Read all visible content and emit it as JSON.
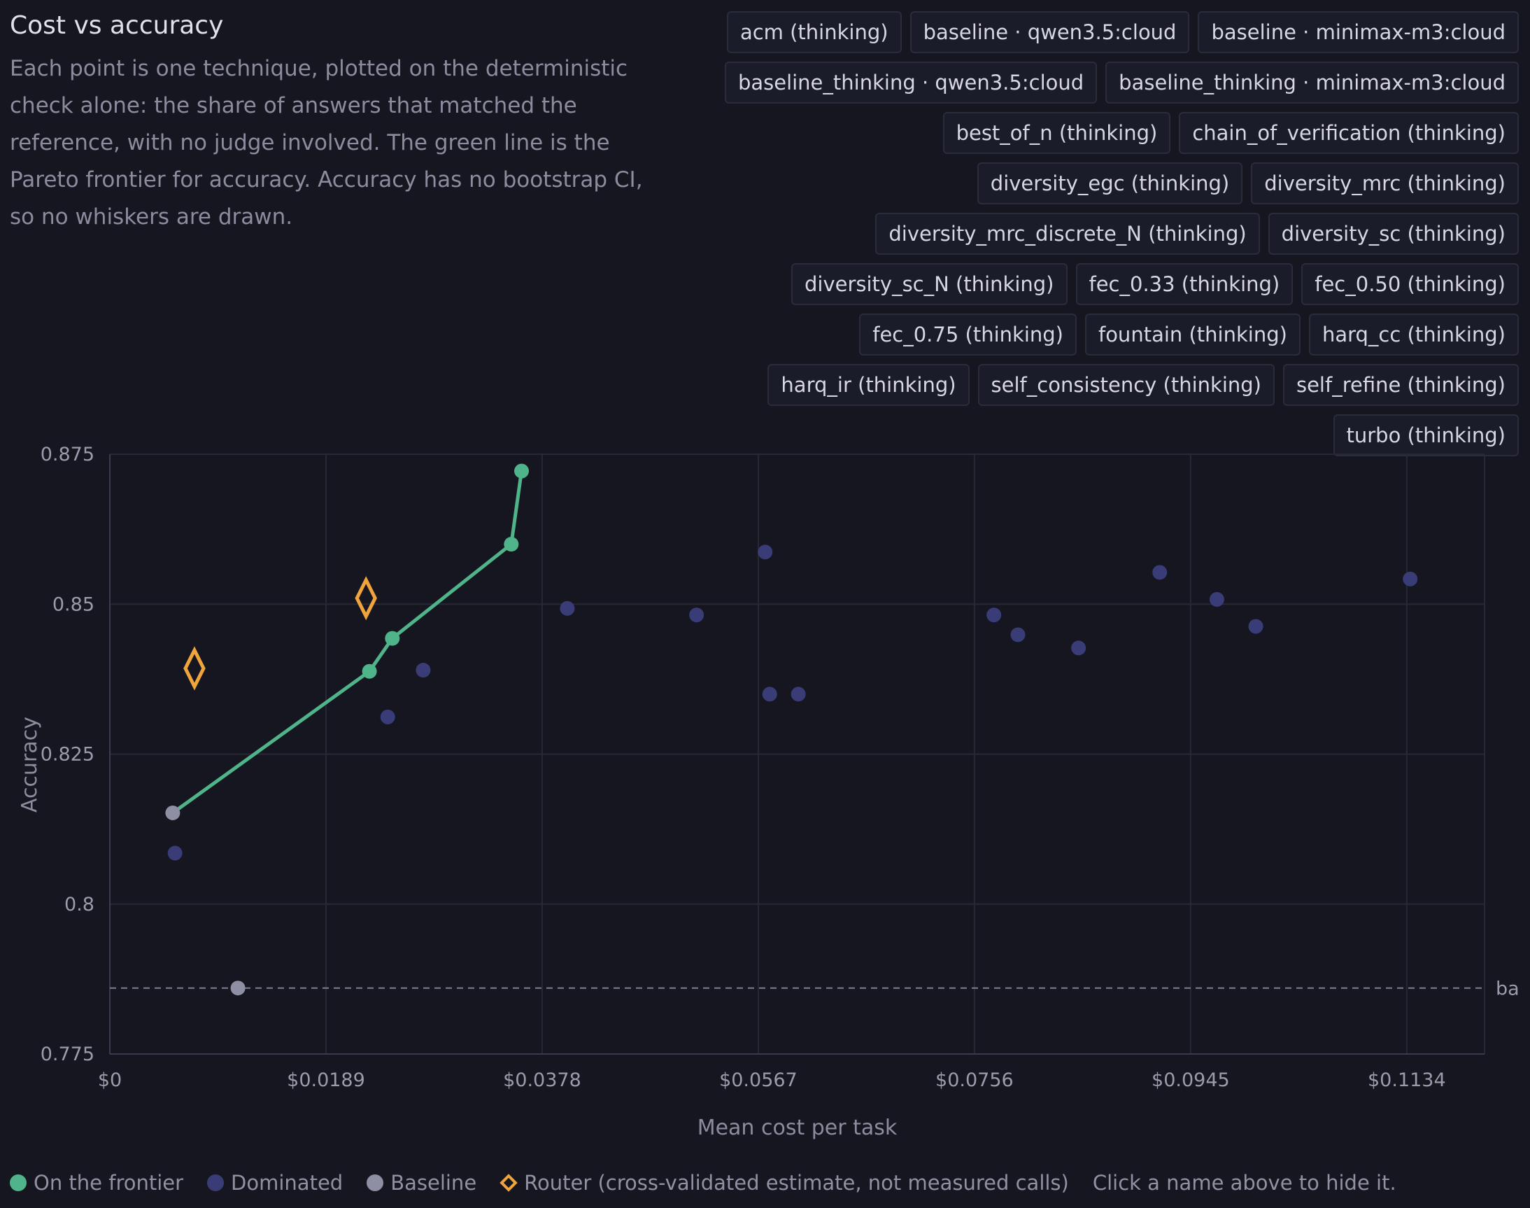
{
  "header": {
    "title": "Cost vs accuracy",
    "description": "Each point is one technique, plotted on the deterministic check alone: the share of answers that matched the reference, with no judge involved. The green line is the Pareto frontier for accuracy. Accuracy has no bootstrap CI, so no whiskers are drawn."
  },
  "filters": [
    "acm (thinking)",
    "baseline · qwen3.5:cloud",
    "baseline · minimax-m3:cloud",
    "baseline_thinking · qwen3.5:cloud",
    "baseline_thinking · minimax-m3:cloud",
    "best_of_n (thinking)",
    "chain_of_verification (thinking)",
    "diversity_egc (thinking)",
    "diversity_mrc (thinking)",
    "diversity_mrc_discrete_N (thinking)",
    "diversity_sc (thinking)",
    "diversity_sc_N (thinking)",
    "fec_0.33 (thinking)",
    "fec_0.50 (thinking)",
    "fec_0.75 (thinking)",
    "fountain (thinking)",
    "harq_cc (thinking)",
    "harq_ir (thinking)",
    "self_consistency (thinking)",
    "self_refine (thinking)",
    "turbo (thinking)"
  ],
  "chart_data": {
    "type": "scatter",
    "xlabel": "Mean cost per task",
    "ylabel": "Accuracy",
    "xlim": [
      0,
      0.1202
    ],
    "ylim": [
      0.775,
      0.875
    ],
    "x_ticks": [
      "$0",
      "$0.0189",
      "$0.0378",
      "$0.0567",
      "$0.0756",
      "$0.0945",
      "$0.1134"
    ],
    "x_tick_values": [
      0,
      0.0189,
      0.0378,
      0.0567,
      0.0756,
      0.0945,
      0.1134
    ],
    "y_ticks": [
      "0.875",
      "0.85",
      "0.825",
      "0.8",
      "0.775"
    ],
    "y_tick_values": [
      0.875,
      0.85,
      0.825,
      0.8,
      0.775
    ],
    "grid": true,
    "reference_line": {
      "y": 0.786,
      "label": "ba"
    },
    "colors": {
      "frontier": "#4fb48a",
      "dominated": "#3a3c78",
      "baseline": "#8e8fa3",
      "router": "#f0a43c",
      "grid": "#272836",
      "axis": "#3a3b4c"
    },
    "frontier_line": [
      {
        "x": 0.0055,
        "y": 0.8152
      },
      {
        "x": 0.0227,
        "y": 0.8388
      },
      {
        "x": 0.0247,
        "y": 0.8443
      },
      {
        "x": 0.0351,
        "y": 0.86
      },
      {
        "x": 0.036,
        "y": 0.8722
      }
    ],
    "series": [
      {
        "name": "On the frontier",
        "marker": "circle",
        "points": [
          {
            "x": 0.0227,
            "y": 0.8388
          },
          {
            "x": 0.0247,
            "y": 0.8443
          },
          {
            "x": 0.0351,
            "y": 0.86
          },
          {
            "x": 0.036,
            "y": 0.8722
          }
        ]
      },
      {
        "name": "Dominated",
        "marker": "circle",
        "points": [
          {
            "x": 0.0057,
            "y": 0.8085
          },
          {
            "x": 0.0243,
            "y": 0.8312
          },
          {
            "x": 0.0274,
            "y": 0.839
          },
          {
            "x": 0.04,
            "y": 0.8493
          },
          {
            "x": 0.0513,
            "y": 0.8482
          },
          {
            "x": 0.0573,
            "y": 0.8587
          },
          {
            "x": 0.0577,
            "y": 0.835
          },
          {
            "x": 0.0602,
            "y": 0.835
          },
          {
            "x": 0.0773,
            "y": 0.8482
          },
          {
            "x": 0.0794,
            "y": 0.8449
          },
          {
            "x": 0.0847,
            "y": 0.8427
          },
          {
            "x": 0.0918,
            "y": 0.8553
          },
          {
            "x": 0.0968,
            "y": 0.8508
          },
          {
            "x": 0.1002,
            "y": 0.8463
          },
          {
            "x": 0.1137,
            "y": 0.8542
          }
        ]
      },
      {
        "name": "Baseline",
        "marker": "circle",
        "points": [
          {
            "x": 0.0055,
            "y": 0.8152
          },
          {
            "x": 0.0112,
            "y": 0.786
          }
        ]
      },
      {
        "name": "Router (cross-validated estimate, not measured calls)",
        "marker": "diamond",
        "points": [
          {
            "x": 0.0074,
            "y": 0.8393
          },
          {
            "x": 0.0224,
            "y": 0.851
          }
        ]
      }
    ]
  },
  "legend": {
    "frontier": "On the frontier",
    "dominated": "Dominated",
    "baseline": "Baseline",
    "router": "Router (cross-validated estimate, not measured calls)",
    "hint": "Click a name above to hide it."
  }
}
